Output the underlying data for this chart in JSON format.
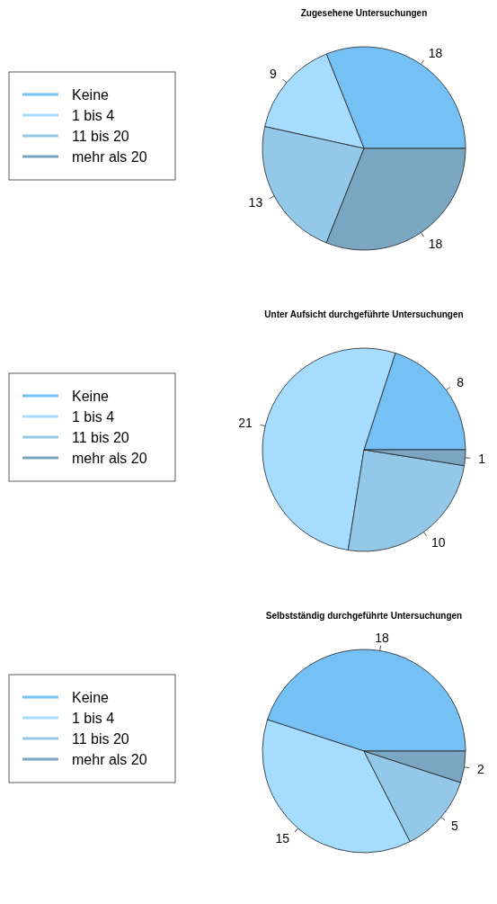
{
  "chart_data": [
    {
      "type": "pie",
      "title": "Zugesehene Untersuchungen",
      "categories": [
        "Keine",
        "1 bis 4",
        "11 bis 20",
        "mehr als 20"
      ],
      "values": [
        18,
        9,
        13,
        18
      ],
      "colors": [
        "#75c1f5",
        "#a6dcff",
        "#94c8e8",
        "#7aa6c2"
      ],
      "data_labels": true,
      "legend": "left"
    },
    {
      "type": "pie",
      "title": "Unter Aufsicht durchgeführte Untersuchungen",
      "categories": [
        "Keine",
        "1 bis 4",
        "11 bis 20",
        "mehr als 20"
      ],
      "values": [
        8,
        21,
        10,
        1
      ],
      "colors": [
        "#75c1f5",
        "#a6dcff",
        "#94c8e8",
        "#7aa6c2"
      ],
      "data_labels": true,
      "legend": "left"
    },
    {
      "type": "pie",
      "title": "Selbstständig durchgeführte Untersuchungen",
      "categories": [
        "Keine",
        "1 bis 4",
        "11 bis 20",
        "mehr als 20"
      ],
      "values": [
        18,
        15,
        5,
        2
      ],
      "colors": [
        "#75c1f5",
        "#a6dcff",
        "#94c8e8",
        "#7aa6c2"
      ],
      "data_labels": true,
      "legend": "left"
    }
  ]
}
